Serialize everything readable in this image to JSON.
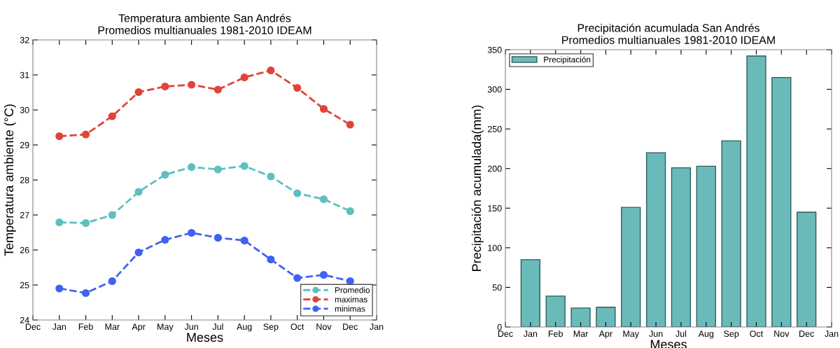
{
  "chart_data": [
    {
      "type": "line",
      "title": "Temperatura ambiente San Andrés\nPromedios multianuales 1981-2010 IDEAM",
      "xlabel": "Meses",
      "ylabel": "Temperatura ambiente (°C)",
      "categories": [
        "Dec",
        "Jan",
        "Feb",
        "Mar",
        "Apr",
        "May",
        "Jun",
        "Jul",
        "Aug",
        "Sep",
        "Oct",
        "Nov",
        "Dec",
        "Jan"
      ],
      "series": [
        {
          "name": "Promedio",
          "color": "#5fbfbf",
          "values": [
            null,
            26.79,
            26.77,
            27.0,
            27.66,
            28.15,
            28.37,
            28.3,
            28.4,
            28.1,
            27.62,
            27.45,
            27.11,
            null
          ]
        },
        {
          "name": "maximas",
          "color": "#e0433a",
          "values": [
            null,
            29.25,
            29.3,
            29.82,
            30.51,
            30.67,
            30.72,
            30.58,
            30.93,
            31.13,
            30.63,
            30.03,
            29.58,
            null
          ]
        },
        {
          "name": "minimas",
          "color": "#3f62f0",
          "values": [
            null,
            24.9,
            24.77,
            25.11,
            25.93,
            26.29,
            26.49,
            26.35,
            26.27,
            25.73,
            25.2,
            25.29,
            25.11,
            null
          ]
        }
      ],
      "ylim": [
        24,
        32
      ],
      "yticks": [
        24,
        25,
        26,
        27,
        28,
        29,
        30,
        31,
        32
      ],
      "grid": false,
      "legend": "bottom right",
      "marker": "circle",
      "line_style": "dashed"
    },
    {
      "type": "bar",
      "title": "Precipitación acumulada San Andrés\nPromedios multianuales 1981-2010 IDEAM",
      "xlabel": "Meses",
      "ylabel": "Precipitación acumulada(mm)",
      "categories": [
        "Dec",
        "Jan",
        "Feb",
        "Mar",
        "Apr",
        "May",
        "Jun",
        "Jul",
        "Aug",
        "Sep",
        "Oct",
        "Nov",
        "Dec",
        "Jan"
      ],
      "series": [
        {
          "name": "Precipitación",
          "color": "#6bbaba",
          "values": [
            null,
            85,
            39,
            24,
            25,
            151,
            220,
            201,
            203,
            235,
            342,
            315,
            145,
            null
          ]
        }
      ],
      "ylim": [
        0,
        350
      ],
      "yticks": [
        0,
        50,
        100,
        150,
        200,
        250,
        300,
        350
      ],
      "grid": false,
      "legend": "top left"
    }
  ]
}
